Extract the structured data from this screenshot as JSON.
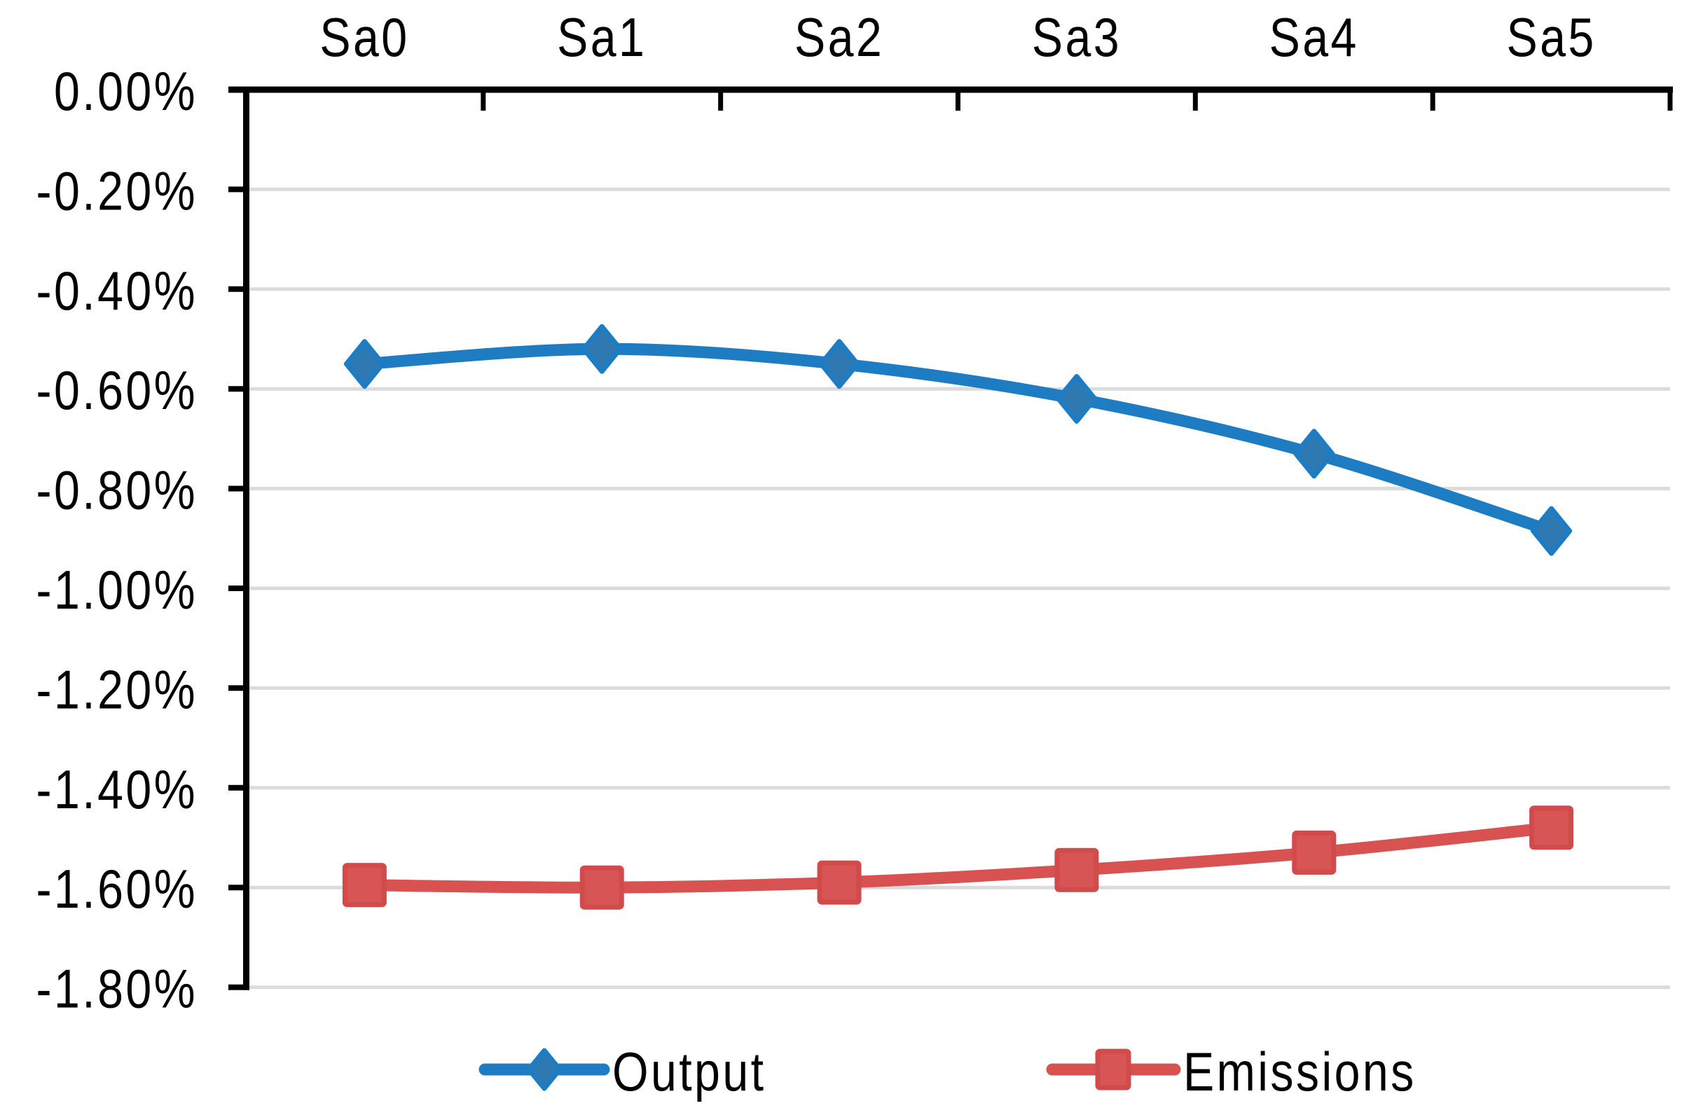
{
  "chart_data": {
    "type": "line",
    "title": "",
    "categories": [
      "Sa0",
      "Sa1",
      "Sa2",
      "Sa3",
      "Sa4",
      "Sa5"
    ],
    "series": [
      {
        "name": "Output",
        "marker": "diamond",
        "line_color": "#1E7CC2",
        "marker_fill": "#2F79B2",
        "marker_stroke": "#1E7CC2",
        "values": [
          -0.55,
          -0.52,
          -0.55,
          -0.62,
          -0.73,
          -0.885
        ]
      },
      {
        "name": "Emissions",
        "marker": "square",
        "line_color": "#D85252",
        "marker_fill": "#D75555",
        "marker_stroke": "#D14B4B",
        "values": [
          -1.595,
          -1.6,
          -1.59,
          -1.565,
          -1.53,
          -1.48
        ]
      }
    ],
    "x_axis": {
      "position": "top",
      "tick_labels": [
        "Sa0",
        "Sa1",
        "Sa2",
        "Sa3",
        "Sa4",
        "Sa5"
      ]
    },
    "y_axis": {
      "min": -1.8,
      "max": 0.0,
      "step": 0.2,
      "format": "percent",
      "tick_labels": [
        "0.00%",
        "-0.20%",
        "-0.40%",
        "-0.60%",
        "-0.80%",
        "-1.00%",
        "-1.20%",
        "-1.40%",
        "-1.60%",
        "-1.80%"
      ]
    },
    "grid": true,
    "smoothed_lines": true,
    "legend_position": "bottom",
    "ylim": [
      -1.8,
      0.0
    ]
  },
  "legend": {
    "items": [
      {
        "label": "Output"
      },
      {
        "label": "Emissions"
      }
    ]
  },
  "colors": {
    "background": "#FFFFFF",
    "axis": "#000000",
    "gridline": "#DBDBDB",
    "tick": "#000000",
    "label_text": "#000000"
  }
}
